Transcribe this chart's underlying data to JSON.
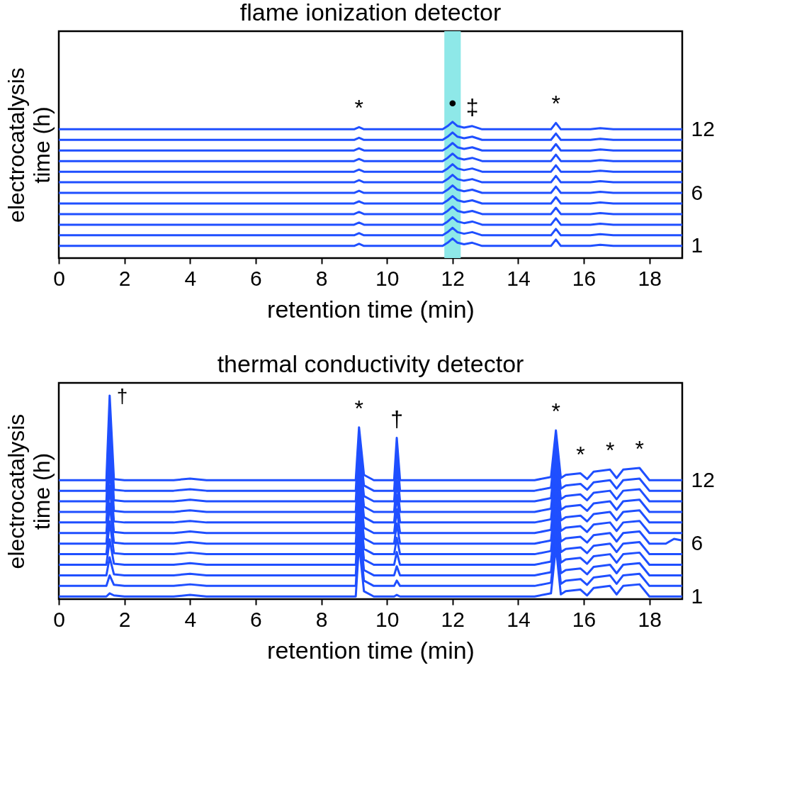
{
  "chart_data": [
    {
      "type": "line",
      "title": "flame ionization detector",
      "xlabel": "retention time (min)",
      "ylabel": "electrocatalysis time (h)",
      "x": [
        0,
        9.0,
        9.15,
        9.3,
        11.7,
        11.85,
        12.0,
        12.15,
        12.35,
        12.6,
        12.9,
        15.0,
        15.15,
        15.3,
        16.2,
        16.5,
        16.9,
        19
      ],
      "series": [
        {
          "color": "#1f4fff",
          "values": [
            1,
            1,
            1.2,
            1,
            1,
            1.3,
            1.7,
            1.3,
            1.15,
            1.3,
            1,
            1,
            1.6,
            1,
            1,
            1.1,
            1,
            1
          ]
        },
        {
          "color": "#1f4fff",
          "values": [
            2,
            2,
            2.2,
            2,
            2,
            2.3,
            2.7,
            2.3,
            2.15,
            2.3,
            2,
            2,
            2.6,
            2,
            2,
            2.1,
            2,
            2
          ]
        },
        {
          "color": "#1f4fff",
          "values": [
            3,
            3,
            3.2,
            3,
            3,
            3.3,
            3.7,
            3.3,
            3.15,
            3.3,
            3,
            3,
            3.6,
            3,
            3,
            3.1,
            3,
            3
          ]
        },
        {
          "color": "#1f4fff",
          "values": [
            4,
            4,
            4.2,
            4,
            4,
            4.3,
            4.7,
            4.3,
            4.15,
            4.3,
            4,
            4,
            4.6,
            4,
            4,
            4.1,
            4,
            4
          ]
        },
        {
          "color": "#1f4fff",
          "values": [
            5,
            5,
            5.2,
            5,
            5,
            5.3,
            5.7,
            5.3,
            5.15,
            5.3,
            5,
            5,
            5.6,
            5,
            5,
            5.1,
            5,
            5
          ]
        },
        {
          "color": "#1f4fff",
          "values": [
            6,
            6,
            6.2,
            6,
            6,
            6.3,
            6.7,
            6.3,
            6.15,
            6.3,
            6,
            6,
            6.6,
            6,
            6,
            6.1,
            6,
            6
          ]
        },
        {
          "color": "#1f4fff",
          "values": [
            7,
            7,
            7.2,
            7,
            7,
            7.3,
            7.7,
            7.3,
            7.15,
            7.3,
            7,
            7,
            7.6,
            7,
            7,
            7.1,
            7,
            7
          ]
        },
        {
          "color": "#1f4fff",
          "values": [
            8,
            8,
            8.2,
            8,
            8,
            8.3,
            8.7,
            8.3,
            8.15,
            8.3,
            8,
            8,
            8.6,
            8,
            8,
            8.1,
            8,
            8
          ]
        },
        {
          "color": "#1f4fff",
          "values": [
            9,
            9,
            9.2,
            9,
            9,
            9.3,
            9.7,
            9.3,
            9.15,
            9.3,
            9,
            9,
            9.6,
            9,
            9,
            9.1,
            9,
            9
          ]
        },
        {
          "color": "#1f4fff",
          "values": [
            10,
            10,
            10.2,
            10,
            10,
            10.3,
            10.7,
            10.3,
            10.15,
            10.3,
            10,
            10,
            10.6,
            10,
            10,
            10.1,
            10,
            10
          ]
        },
        {
          "color": "#1f4fff",
          "values": [
            11,
            11,
            11.2,
            11,
            11,
            11.3,
            11.7,
            11.3,
            11.15,
            11.3,
            11,
            11,
            11.6,
            11,
            11,
            11.1,
            11,
            11
          ]
        },
        {
          "color": "#1f4fff",
          "values": [
            12,
            12,
            12.2,
            12,
            12,
            12.3,
            12.7,
            12.3,
            12.15,
            12.3,
            12,
            12,
            12.6,
            12,
            12,
            12.1,
            12,
            12
          ]
        }
      ],
      "xlim": [
        0,
        19
      ],
      "xticks": [
        0,
        2,
        4,
        6,
        8,
        10,
        12,
        14,
        16,
        18
      ],
      "ylim": [
        -0.15,
        21.25
      ],
      "yticks": [
        1,
        6,
        12
      ],
      "bands": [
        {
          "axis": "x",
          "from": 11.75,
          "to": 12.25,
          "color": "#8ee8e8"
        }
      ],
      "annotations": [
        {
          "text": "*",
          "x": 9.15,
          "y": 12.2
        },
        {
          "text": "•",
          "x": 12.0,
          "y": 12.7
        },
        {
          "text": "‡",
          "x": 12.6,
          "y": 12.3
        },
        {
          "text": "*",
          "x": 15.15,
          "y": 12.6
        }
      ]
    },
    {
      "type": "line",
      "title": "thermal conductivity detector",
      "xlabel": "retention time (min)",
      "ylabel": "electrocatalysis time (h)",
      "x": [
        0,
        1.45,
        1.55,
        1.68,
        2.0,
        3.5,
        4.0,
        4.5,
        9.05,
        9.15,
        9.3,
        9.6,
        10.22,
        10.3,
        10.4,
        14.5,
        15.0,
        15.15,
        15.3,
        15.45,
        15.9,
        16.1,
        16.3,
        16.8,
        17.0,
        17.2,
        17.7,
        18.0,
        18.5,
        18.75,
        19
      ],
      "series": [
        {
          "color": "#1f4fff",
          "values": [
            1,
            1,
            1.3,
            1.1,
            1,
            1,
            1.15,
            1,
            1,
            6,
            1.5,
            1,
            1,
            1.15,
            1,
            1,
            1.3,
            5.7,
            1.2,
            1.5,
            1.65,
            1.1,
            1.8,
            2,
            1.2,
            2,
            2.15,
            1,
            1,
            1,
            1
          ]
        },
        {
          "color": "#1f4fff",
          "values": [
            2,
            2,
            3,
            2.1,
            2,
            2,
            2.15,
            2,
            2,
            7,
            2.5,
            2,
            2,
            2.5,
            2,
            2,
            2.3,
            6.7,
            2.2,
            2.5,
            2.65,
            2.1,
            2.8,
            3,
            2.2,
            3,
            3.15,
            2,
            2,
            2,
            2
          ]
        },
        {
          "color": "#1f4fff",
          "values": [
            3,
            3,
            4.7,
            3.1,
            3,
            3,
            3.15,
            3,
            3,
            8,
            3.5,
            3,
            3,
            3.85,
            3,
            3,
            3.3,
            7.7,
            3.2,
            3.5,
            3.65,
            3.1,
            3.8,
            4,
            3.2,
            4,
            4.15,
            3,
            3,
            3,
            3
          ]
        },
        {
          "color": "#1f4fff",
          "values": [
            4,
            4,
            6.4,
            4.1,
            4,
            4,
            4.15,
            4,
            4,
            9,
            4.5,
            4,
            4,
            5.2,
            4,
            4,
            4.3,
            8.7,
            4.2,
            4.5,
            4.65,
            4.1,
            4.8,
            5,
            4.2,
            5,
            5.15,
            4,
            4,
            4,
            4
          ]
        },
        {
          "color": "#1f4fff",
          "values": [
            5,
            5,
            8.1,
            5.1,
            5,
            5,
            5.15,
            5,
            5,
            10,
            5.5,
            5,
            5,
            6.55,
            5,
            5,
            5.3,
            9.7,
            5.2,
            5.5,
            5.65,
            5.1,
            5.8,
            6,
            5.2,
            6,
            6.15,
            5,
            5,
            5,
            5
          ]
        },
        {
          "color": "#1f4fff",
          "values": [
            6,
            6,
            9.8,
            6.1,
            6,
            6,
            6.15,
            6,
            6,
            11,
            6.5,
            6,
            6,
            7.9,
            6,
            6,
            6.3,
            10.7,
            6.2,
            6.5,
            6.65,
            6.1,
            6.8,
            7,
            6.2,
            7,
            7.15,
            6,
            6,
            6.45,
            6.3
          ]
        },
        {
          "color": "#1f4fff",
          "values": [
            7,
            7,
            11.5,
            7.1,
            7,
            7,
            7.15,
            7,
            7,
            12,
            7.5,
            7,
            7,
            9.25,
            7,
            7,
            7.3,
            11.7,
            7.2,
            7.5,
            7.65,
            7.1,
            7.8,
            8,
            7.2,
            8,
            8.15,
            7,
            7,
            7,
            7
          ]
        },
        {
          "color": "#1f4fff",
          "values": [
            8,
            8,
            13.2,
            8.1,
            8,
            8,
            8.15,
            8,
            8,
            13,
            8.5,
            8,
            8,
            10.6,
            8,
            8,
            8.3,
            12.7,
            8.2,
            8.5,
            8.65,
            8.1,
            8.8,
            9,
            8.2,
            9,
            9.15,
            8,
            8,
            8,
            8
          ]
        },
        {
          "color": "#1f4fff",
          "values": [
            9,
            9,
            14.9,
            9.1,
            9,
            9,
            9.15,
            9,
            9,
            14,
            9.5,
            9,
            9,
            11.95,
            9,
            9,
            9.3,
            13.7,
            9.2,
            9.5,
            9.65,
            9.1,
            9.8,
            10,
            9.2,
            10,
            10.15,
            9,
            9,
            9,
            9
          ]
        },
        {
          "color": "#1f4fff",
          "values": [
            10,
            10,
            16.6,
            10.1,
            10,
            10,
            10.15,
            10,
            10,
            15,
            10.5,
            10,
            10,
            13.3,
            10,
            10,
            10.3,
            14.7,
            10.2,
            10.5,
            10.65,
            10.1,
            10.8,
            11,
            10.2,
            11,
            11.15,
            10,
            10,
            10,
            10
          ]
        },
        {
          "color": "#1f4fff",
          "values": [
            11,
            11,
            18.3,
            11.1,
            11,
            11,
            11.15,
            11,
            11,
            16,
            11.5,
            11,
            11,
            14.65,
            11,
            11,
            11.3,
            15.7,
            11.2,
            11.5,
            11.65,
            11.1,
            11.8,
            12,
            11.2,
            12,
            12.15,
            11,
            11,
            11,
            11
          ]
        },
        {
          "color": "#1f4fff",
          "values": [
            12,
            12,
            20,
            12.1,
            12,
            12,
            12.15,
            12,
            12,
            17,
            12.5,
            12,
            12,
            16,
            12,
            12,
            12.3,
            16.7,
            12.2,
            12.5,
            12.65,
            12.1,
            12.8,
            13,
            12.2,
            13,
            13.15,
            12,
            12,
            12,
            12
          ]
        }
      ],
      "xlim": [
        0,
        19
      ],
      "xticks": [
        0,
        2,
        4,
        6,
        8,
        10,
        12,
        14,
        16,
        18
      ],
      "ylim": [
        0.75,
        21.2
      ],
      "yticks": [
        1,
        6,
        12
      ],
      "annotations": [
        {
          "text": "†",
          "x": 1.55,
          "y": 20
        },
        {
          "text": "*",
          "x": 9.15,
          "y": 17
        },
        {
          "text": "†",
          "x": 10.3,
          "y": 16
        },
        {
          "text": "*",
          "x": 15.15,
          "y": 16.7
        },
        {
          "text": "*",
          "x": 15.9,
          "y": 12.65
        },
        {
          "text": "*",
          "x": 16.8,
          "y": 13
        },
        {
          "text": "*",
          "x": 17.7,
          "y": 13.15
        }
      ]
    }
  ]
}
